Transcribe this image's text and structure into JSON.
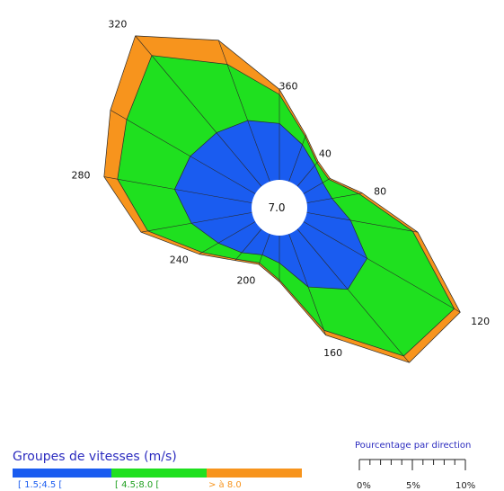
{
  "chart_data": {
    "type": "windrose",
    "center_label": "7.0",
    "direction_labels": [
      {
        "deg": 40,
        "text": "40"
      },
      {
        "deg": 80,
        "text": "80"
      },
      {
        "deg": 120,
        "text": "120"
      },
      {
        "deg": 160,
        "text": "160"
      },
      {
        "deg": 200,
        "text": "200"
      },
      {
        "deg": 240,
        "text": "240"
      },
      {
        "deg": 280,
        "text": "280"
      },
      {
        "deg": 320,
        "text": "320"
      },
      {
        "deg": 360,
        "text": "360"
      }
    ],
    "directions": [
      0,
      20,
      40,
      60,
      80,
      100,
      120,
      140,
      160,
      180,
      200,
      220,
      240,
      260,
      280,
      300,
      320,
      340
    ],
    "series": [
      {
        "name": "[ 1.5;4.5 [",
        "color": "#1a5cf0",
        "cum_percent": [
          3.3,
          2.3,
          1.6,
          1.3,
          1.5,
          2.6,
          4.3,
          4.6,
          3.3,
          1.6,
          1.3,
          1.8,
          2.5,
          3.6,
          4.6,
          4.4,
          4.1,
          3.8
        ]
      },
      {
        "name": "[ 4.5;8.0 [",
        "color": "#1fe01f",
        "cum_percent": [
          5.0,
          2.8,
          1.8,
          1.7,
          3.1,
          6.3,
          10.2,
          9.7,
          6.0,
          2.6,
          1.8,
          2.3,
          3.6,
          6.2,
          8.0,
          8.7,
          10.0,
          7.3
        ]
      },
      {
        "name": "> à 8.0",
        "color": "#f7941d",
        "cum_percent": [
          5.3,
          2.9,
          1.9,
          1.8,
          3.3,
          6.6,
          10.6,
          10.2,
          6.3,
          2.7,
          1.9,
          2.4,
          3.8,
          6.6,
          8.8,
          9.8,
          11.5,
          8.8
        ]
      }
    ],
    "legend_title": "Groupes de vitesses (m/s)",
    "scale": {
      "title": "Pourcentage par direction",
      "ticks": [
        "0%",
        "5%",
        "10%"
      ]
    }
  }
}
